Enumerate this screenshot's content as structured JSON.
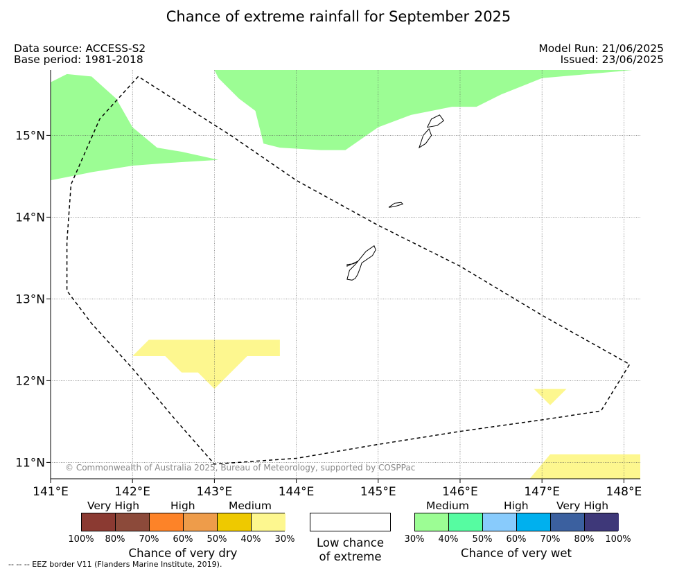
{
  "title": "Chance of extreme rainfall for September 2025",
  "header": {
    "data_source": "Data source: ACCESS-S2",
    "base_period": "Base period: 1981-2018",
    "model_run": "Model Run: 21/06/2025",
    "issued": "Issued: 23/06/2025"
  },
  "map": {
    "lon_range": [
      141.0,
      148.2
    ],
    "lat_range": [
      10.8,
      15.8
    ],
    "lon_ticks": [
      "141°E",
      "142°E",
      "143°E",
      "144°E",
      "145°E",
      "146°E",
      "147°E",
      "148°E"
    ],
    "lat_ticks": [
      "11°N",
      "12°N",
      "13°N",
      "14°N",
      "15°N"
    ],
    "copyright": "© Commonwealth of Australia 2025, Bureau of Meteorology, supported by COSPPac",
    "colors": {
      "wet_medium": "#9cfd94",
      "dry_medium": "#fdf78f",
      "coast": "#000000",
      "eez": "#000000"
    },
    "eez_border": [
      [
        142.07,
        15.72
      ],
      [
        141.6,
        15.2
      ],
      [
        141.25,
        14.4
      ],
      [
        141.2,
        13.7
      ],
      [
        141.2,
        13.1
      ],
      [
        141.5,
        12.7
      ],
      [
        142.0,
        12.15
      ],
      [
        142.5,
        11.55
      ],
      [
        143.0,
        10.98
      ],
      [
        144.0,
        11.05
      ],
      [
        145.0,
        11.22
      ],
      [
        146.0,
        11.38
      ],
      [
        147.0,
        11.52
      ],
      [
        147.72,
        11.63
      ],
      [
        148.07,
        12.2
      ],
      [
        147.0,
        12.8
      ],
      [
        146.0,
        13.4
      ],
      [
        145.0,
        13.9
      ],
      [
        144.0,
        14.45
      ],
      [
        143.2,
        15.0
      ],
      [
        142.07,
        15.72
      ]
    ],
    "wet_regions": [
      {
        "category": "Medium",
        "points": [
          [
            141.0,
            15.65
          ],
          [
            141.2,
            15.75
          ],
          [
            141.5,
            15.72
          ],
          [
            141.8,
            15.45
          ],
          [
            142.0,
            15.1
          ],
          [
            142.3,
            14.85
          ],
          [
            142.6,
            14.8
          ],
          [
            143.05,
            14.7
          ],
          [
            142.4,
            14.66
          ],
          [
            142.0,
            14.63
          ],
          [
            141.5,
            14.55
          ],
          [
            141.0,
            14.45
          ]
        ]
      },
      {
        "category": "Medium",
        "points": [
          [
            143.0,
            15.8
          ],
          [
            148.1,
            15.8
          ],
          [
            147.9,
            15.78
          ],
          [
            147.0,
            15.7
          ],
          [
            146.5,
            15.5
          ],
          [
            146.2,
            15.35
          ],
          [
            145.9,
            15.35
          ],
          [
            145.4,
            15.25
          ],
          [
            145.0,
            15.1
          ],
          [
            144.6,
            14.82
          ],
          [
            144.3,
            14.82
          ],
          [
            143.8,
            14.85
          ],
          [
            143.6,
            14.9
          ],
          [
            143.55,
            15.1
          ],
          [
            143.5,
            15.3
          ],
          [
            143.3,
            15.45
          ],
          [
            143.05,
            15.7
          ]
        ]
      }
    ],
    "dry_regions": [
      {
        "category": "Medium",
        "points": [
          [
            142.0,
            12.3
          ],
          [
            142.2,
            12.5
          ],
          [
            143.8,
            12.5
          ],
          [
            143.8,
            12.3
          ],
          [
            143.4,
            12.3
          ],
          [
            143.0,
            11.9
          ],
          [
            142.8,
            12.1
          ],
          [
            142.6,
            12.1
          ],
          [
            142.4,
            12.3
          ]
        ]
      },
      {
        "category": "Medium",
        "points": [
          [
            146.9,
            11.9
          ],
          [
            147.3,
            11.9
          ],
          [
            147.1,
            11.7
          ]
        ]
      },
      {
        "category": "Medium",
        "points": [
          [
            146.85,
            10.8
          ],
          [
            147.1,
            11.1
          ],
          [
            148.2,
            11.1
          ],
          [
            148.2,
            10.8
          ]
        ]
      }
    ],
    "islands": [
      {
        "name": "",
        "points": [
          [
            144.62,
            13.24
          ],
          [
            144.65,
            13.35
          ],
          [
            144.72,
            13.42
          ],
          [
            144.85,
            13.58
          ],
          [
            144.95,
            13.65
          ],
          [
            144.97,
            13.6
          ],
          [
            144.93,
            13.53
          ],
          [
            144.8,
            13.44
          ],
          [
            144.78,
            13.38
          ],
          [
            144.75,
            13.3
          ],
          [
            144.72,
            13.25
          ],
          [
            144.68,
            13.23
          ]
        ]
      },
      {
        "name": "",
        "points": [
          [
            144.62,
            13.4
          ],
          [
            144.75,
            13.46
          ],
          [
            144.7,
            13.43
          ],
          [
            144.62,
            13.42
          ]
        ]
      },
      {
        "name": "",
        "points": [
          [
            145.13,
            14.12
          ],
          [
            145.2,
            14.17
          ],
          [
            145.28,
            14.18
          ],
          [
            145.3,
            14.16
          ],
          [
            145.2,
            14.13
          ]
        ]
      },
      {
        "name": "",
        "points": [
          [
            145.5,
            14.85
          ],
          [
            145.58,
            14.9
          ],
          [
            145.65,
            15.0
          ],
          [
            145.62,
            15.08
          ],
          [
            145.55,
            15.0
          ]
        ]
      },
      {
        "name": "",
        "points": [
          [
            145.6,
            15.1
          ],
          [
            145.65,
            15.2
          ],
          [
            145.75,
            15.25
          ],
          [
            145.8,
            15.18
          ],
          [
            145.72,
            15.12
          ]
        ]
      }
    ]
  },
  "legend": {
    "dry": {
      "categories": [
        "Very High",
        "High",
        "Medium"
      ],
      "colors": [
        "#8b3a32",
        "#8c4a3a",
        "#fd8328",
        "#ee9c4a",
        "#eec900",
        "#fdf78f"
      ],
      "percents": [
        "100%",
        "80%",
        "70%",
        "60%",
        "50%",
        "40%",
        "30%"
      ],
      "caption": "Chance of very dry"
    },
    "low": {
      "caption_line1": "Low chance",
      "caption_line2": "of extreme"
    },
    "wet": {
      "categories": [
        "Medium",
        "High",
        "Very High"
      ],
      "colors": [
        "#9cfd94",
        "#56fca1",
        "#88cbfc",
        "#00b0ee",
        "#3b609f",
        "#3e3879"
      ],
      "percents": [
        "30%",
        "40%",
        "50%",
        "60%",
        "70%",
        "80%",
        "100%"
      ],
      "caption": "Chance of very wet"
    }
  },
  "footer": "--  --  -- EEZ border V11 (Flanders Marine Institute, 2019)."
}
